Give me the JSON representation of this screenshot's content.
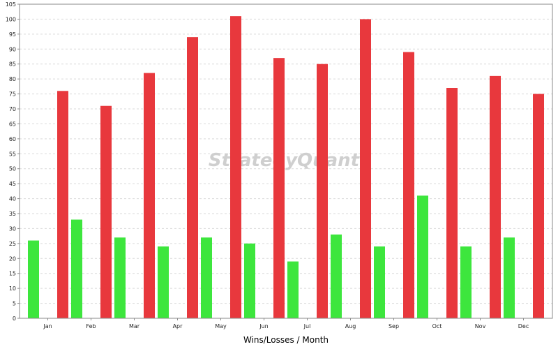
{
  "chart_data": {
    "type": "bar",
    "title": "",
    "xlabel": "Wins/Losses / Month",
    "ylabel": "",
    "ylim": [
      0,
      105
    ],
    "ytick_step": 5,
    "grid": true,
    "legend": "none",
    "categories": [
      "Jan",
      "Feb",
      "Mar",
      "Apr",
      "May",
      "Jun",
      "Jul",
      "Aug",
      "Sep",
      "Oct",
      "Nov",
      "Dec"
    ],
    "series": [
      {
        "name": "",
        "color": "#3de63d",
        "values": [
          26,
          33,
          27,
          24,
          27,
          25,
          19,
          28,
          24,
          41,
          24,
          27
        ]
      },
      {
        "name": "",
        "color": "#e8383d",
        "values": [
          76,
          71,
          82,
          94,
          101,
          87,
          85,
          100,
          89,
          77,
          81,
          75
        ]
      }
    ]
  },
  "watermark": "StrategyQuant"
}
